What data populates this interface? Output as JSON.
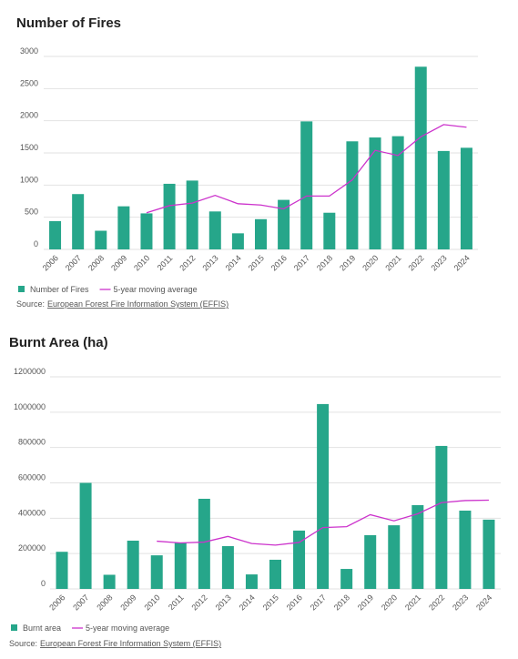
{
  "chart_data": [
    {
      "type": "bar",
      "title": "Number of Fires",
      "categories": [
        "2006",
        "2007",
        "2008",
        "2009",
        "2010",
        "2011",
        "2012",
        "2013",
        "2014",
        "2015",
        "2016",
        "2017",
        "2018",
        "2019",
        "2020",
        "2021",
        "2022",
        "2023",
        "2024"
      ],
      "series": [
        {
          "name": "Number of Fires",
          "type": "bar",
          "color": "#26a68a",
          "values": [
            440,
            860,
            290,
            670,
            560,
            1020,
            1070,
            590,
            250,
            470,
            770,
            1990,
            570,
            1680,
            1740,
            1760,
            2840,
            1530,
            1580
          ]
        },
        {
          "name": "5-year moving average",
          "type": "line",
          "color": "#cc33cc",
          "values": [
            null,
            null,
            null,
            null,
            570,
            680,
            720,
            840,
            710,
            690,
            630,
            830,
            830,
            1080,
            1540,
            1460,
            1750,
            1940,
            1900
          ]
        }
      ],
      "ylim": [
        0,
        3000
      ],
      "yticks": [
        0,
        500,
        1000,
        1500,
        2000,
        2500,
        3000
      ],
      "grid": true,
      "source_label": "Source:",
      "source_link": "European Forest Fire Information System (EFFIS)"
    },
    {
      "type": "bar",
      "title": "Burnt Area (ha)",
      "categories": [
        "2006",
        "2007",
        "2008",
        "2009",
        "2010",
        "2011",
        "2012",
        "2013",
        "2014",
        "2015",
        "2016",
        "2017",
        "2018",
        "2019",
        "2020",
        "2021",
        "2022",
        "2023",
        "2024"
      ],
      "series": [
        {
          "name": "Burnt area",
          "type": "bar",
          "color": "#26a68a",
          "values": [
            210000,
            600000,
            80000,
            273000,
            190000,
            263000,
            510000,
            242000,
            82000,
            165000,
            330000,
            1046000,
            113000,
            304000,
            360000,
            474000,
            809000,
            443000,
            392000
          ]
        },
        {
          "name": "5-year moving average",
          "type": "line",
          "color": "#cc33cc",
          "values": [
            null,
            null,
            null,
            null,
            270000,
            260000,
            265000,
            297000,
            257000,
            248000,
            263000,
            347000,
            352000,
            420000,
            385000,
            425000,
            488000,
            500000,
            502000
          ]
        }
      ],
      "ylim": [
        0,
        1200000
      ],
      "yticks": [
        0,
        200000,
        400000,
        600000,
        800000,
        1000000,
        1200000
      ],
      "grid": true,
      "source_label": "Source:",
      "source_link": "European Forest Fire Information System (EFFIS)"
    }
  ]
}
